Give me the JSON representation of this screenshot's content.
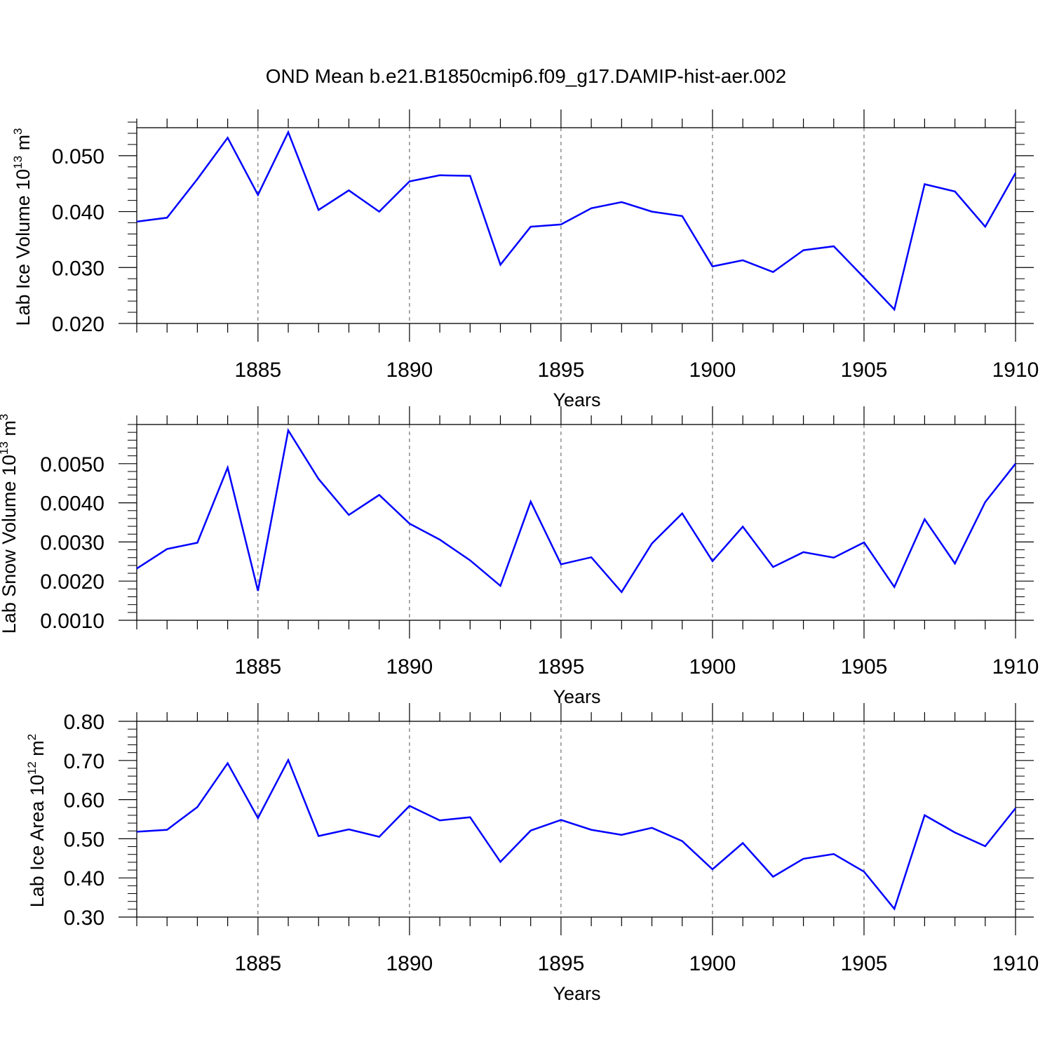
{
  "title": "OND Mean b.e21.B1850cmip6.f09_g17.DAMIP-hist-aer.002",
  "colors": {
    "line": "#0000ff",
    "axis": "#000000",
    "grid": "#555555"
  },
  "chart_data": [
    {
      "type": "line",
      "ylabel": {
        "main": "Lab Ice Volume 10",
        "exp": "13",
        "unit": " m",
        "unit_exp": "3"
      },
      "xlabel": "Years",
      "xlim": [
        1881,
        1910
      ],
      "ylim": [
        0.02,
        0.055
      ],
      "yticks": [
        0.02,
        0.03,
        0.04,
        0.05
      ],
      "ytick_labels": [
        "0.020",
        "0.030",
        "0.040",
        "0.050"
      ],
      "xticks": [
        1885,
        1890,
        1895,
        1900,
        1905,
        1910
      ],
      "xtick_labels": [
        "1885",
        "1890",
        "1895",
        "1900",
        "1905",
        "1910"
      ],
      "grid": "vertical dashed at major x ticks",
      "series": [
        {
          "x": [
            1881,
            1882,
            1883,
            1884,
            1885,
            1886,
            1887,
            1888,
            1889,
            1890,
            1891,
            1892,
            1893,
            1894,
            1895,
            1896,
            1897,
            1898,
            1899,
            1900,
            1901,
            1902,
            1903,
            1904,
            1905,
            1906,
            1907,
            1908,
            1909,
            1910
          ],
          "values": [
            0.0382,
            0.0389,
            0.0458,
            0.0532,
            0.043,
            0.0542,
            0.0403,
            0.0438,
            0.04,
            0.0454,
            0.0465,
            0.0464,
            0.0305,
            0.0373,
            0.0377,
            0.0406,
            0.0417,
            0.04,
            0.0392,
            0.0302,
            0.0313,
            0.0292,
            0.0331,
            0.0338,
            0.0282,
            0.0225,
            0.0449,
            0.0436,
            0.0373,
            0.0469
          ]
        }
      ]
    },
    {
      "type": "line",
      "ylabel": {
        "main": "Lab Snow Volume 10",
        "exp": "13",
        "unit": " m",
        "unit_exp": "3"
      },
      "xlabel": "Years",
      "xlim": [
        1881,
        1910
      ],
      "ylim": [
        0.001,
        0.006
      ],
      "yticks": [
        0.001,
        0.002,
        0.003,
        0.004,
        0.005
      ],
      "ytick_labels": [
        "0.0010",
        "0.0020",
        "0.0030",
        "0.0040",
        "0.0050"
      ],
      "xticks": [
        1885,
        1890,
        1895,
        1900,
        1905,
        1910
      ],
      "xtick_labels": [
        "1885",
        "1890",
        "1895",
        "1900",
        "1905",
        "1910"
      ],
      "grid": "vertical dashed at major x ticks",
      "series": [
        {
          "x": [
            1881,
            1882,
            1883,
            1884,
            1885,
            1886,
            1887,
            1888,
            1889,
            1890,
            1891,
            1892,
            1893,
            1894,
            1895,
            1896,
            1897,
            1898,
            1899,
            1900,
            1901,
            1902,
            1903,
            1904,
            1905,
            1906,
            1907,
            1908,
            1909,
            1910
          ],
          "values": [
            0.00232,
            0.00282,
            0.00298,
            0.0049,
            0.00175,
            0.00585,
            0.00461,
            0.00369,
            0.0042,
            0.00347,
            0.00306,
            0.00253,
            0.00188,
            0.00403,
            0.00243,
            0.00261,
            0.00172,
            0.00296,
            0.00373,
            0.00251,
            0.00339,
            0.00236,
            0.00274,
            0.0026,
            0.00299,
            0.00185,
            0.00358,
            0.00245,
            0.00402,
            0.005
          ]
        }
      ]
    },
    {
      "type": "line",
      "ylabel": {
        "main": "Lab Ice Area 10",
        "exp": "12",
        "unit": " m",
        "unit_exp": "2"
      },
      "xlabel": "Years",
      "xlim": [
        1881,
        1910
      ],
      "ylim": [
        0.3,
        0.8
      ],
      "yticks": [
        0.3,
        0.4,
        0.5,
        0.6,
        0.7,
        0.8
      ],
      "ytick_labels": [
        "0.30",
        "0.40",
        "0.50",
        "0.60",
        "0.70",
        "0.80"
      ],
      "xticks": [
        1885,
        1890,
        1895,
        1900,
        1905,
        1910
      ],
      "xtick_labels": [
        "1885",
        "1890",
        "1895",
        "1900",
        "1905",
        "1910"
      ],
      "grid": "vertical dashed at major x ticks",
      "series": [
        {
          "x": [
            1881,
            1882,
            1883,
            1884,
            1885,
            1886,
            1887,
            1888,
            1889,
            1890,
            1891,
            1892,
            1893,
            1894,
            1895,
            1896,
            1897,
            1898,
            1899,
            1900,
            1901,
            1902,
            1903,
            1904,
            1905,
            1906,
            1907,
            1908,
            1909,
            1910
          ],
          "values": [
            0.518,
            0.523,
            0.581,
            0.693,
            0.553,
            0.701,
            0.507,
            0.524,
            0.505,
            0.584,
            0.547,
            0.555,
            0.441,
            0.521,
            0.548,
            0.523,
            0.51,
            0.528,
            0.494,
            0.422,
            0.489,
            0.403,
            0.449,
            0.461,
            0.416,
            0.321,
            0.56,
            0.516,
            0.481,
            0.578
          ]
        }
      ]
    }
  ]
}
